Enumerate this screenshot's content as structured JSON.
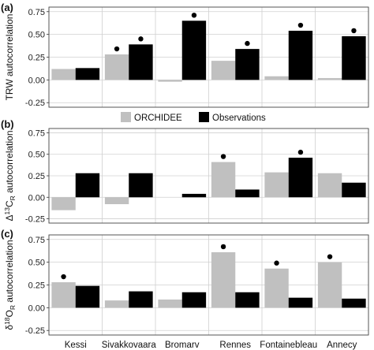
{
  "chart_data": [
    {
      "type": "bar",
      "panel_label": "(a)",
      "ylabel": {
        "pre": "TRW autocorrelation",
        "sub": "",
        "post": ""
      },
      "categories": [
        "Kessi",
        "Sivakkovaara",
        "Bromarv",
        "Rennes",
        "Fontainebleau",
        "Annecy"
      ],
      "series": [
        {
          "name": "ORCHIDEE",
          "color": "#c0c0c0",
          "values": [
            0.12,
            0.28,
            -0.02,
            0.21,
            0.04,
            0.02
          ]
        },
        {
          "name": "Observations",
          "color": "#000000",
          "values": [
            0.13,
            0.39,
            0.65,
            0.34,
            0.54,
            0.48
          ]
        }
      ],
      "significance_dots": [
        {
          "series": 1,
          "category": 1
        },
        {
          "series": 1,
          "category": 2
        },
        {
          "series": 1,
          "category": 3
        },
        {
          "series": 1,
          "category": 4
        },
        {
          "series": 1,
          "category": 5
        },
        {
          "series": 0,
          "category": 1
        }
      ],
      "ylim": [
        -0.3,
        0.8
      ],
      "yticks": [
        -0.25,
        0,
        0.25,
        0.5,
        0.75
      ],
      "ytick_labels": [
        "-0.25",
        "0.00",
        "0.25",
        "0.50",
        "0.75"
      ],
      "grid": true
    },
    {
      "type": "bar",
      "panel_label": "(b)",
      "ylabel": {
        "pre": "Δ",
        "sup": "13",
        "pre2": "C",
        "sub": "R",
        "post": " autocorrelation"
      },
      "categories": [
        "Kessi",
        "Sivakkovaara",
        "Bromarv",
        "Rennes",
        "Fontainebleau",
        "Annecy"
      ],
      "series": [
        {
          "name": "ORCHIDEE",
          "color": "#c0c0c0",
          "values": [
            -0.15,
            -0.08,
            0.0,
            0.41,
            0.29,
            0.28
          ]
        },
        {
          "name": "Observations",
          "color": "#000000",
          "values": [
            0.28,
            0.28,
            0.04,
            0.09,
            0.46,
            0.17
          ]
        }
      ],
      "significance_dots": [
        {
          "series": 0,
          "category": 3
        },
        {
          "series": 1,
          "category": 4
        }
      ],
      "ylim": [
        -0.3,
        0.8
      ],
      "yticks": [
        -0.25,
        0,
        0.25,
        0.5,
        0.75
      ],
      "ytick_labels": [
        "-0.25",
        "0.00",
        "0.25",
        "0.50",
        "0.75"
      ],
      "grid": true
    },
    {
      "type": "bar",
      "panel_label": "(c)",
      "ylabel": {
        "pre": "δ",
        "sup": "18",
        "pre2": "O",
        "sub": "R",
        "post": " autocorrelation"
      },
      "categories": [
        "Kessi",
        "Sivakkovaara",
        "Bromarv",
        "Rennes",
        "Fontainebleau",
        "Annecy"
      ],
      "series": [
        {
          "name": "ORCHIDEE",
          "color": "#c0c0c0",
          "values": [
            0.28,
            0.08,
            0.09,
            0.61,
            0.43,
            0.5
          ]
        },
        {
          "name": "Observations",
          "color": "#000000",
          "values": [
            0.24,
            0.18,
            0.17,
            0.17,
            0.11,
            0.1
          ]
        }
      ],
      "significance_dots": [
        {
          "series": 0,
          "category": 0
        },
        {
          "series": 0,
          "category": 3
        },
        {
          "series": 0,
          "category": 4
        },
        {
          "series": 0,
          "category": 5
        }
      ],
      "ylim": [
        -0.3,
        0.8
      ],
      "yticks": [
        -0.25,
        0,
        0.25,
        0.5,
        0.75
      ],
      "ytick_labels": [
        "-0.25",
        "0.00",
        "0.25",
        "0.50",
        "0.75"
      ],
      "grid": true
    }
  ],
  "legend": {
    "placement": "between panels a and b",
    "items": [
      {
        "label": "ORCHIDEE",
        "color": "#c0c0c0"
      },
      {
        "label": "Observations",
        "color": "#000000"
      }
    ]
  },
  "x_category_labels": [
    "Kessi",
    "Sivakkovaara",
    "Bromarv",
    "Rennes",
    "Fontainebleau",
    "Annecy"
  ]
}
